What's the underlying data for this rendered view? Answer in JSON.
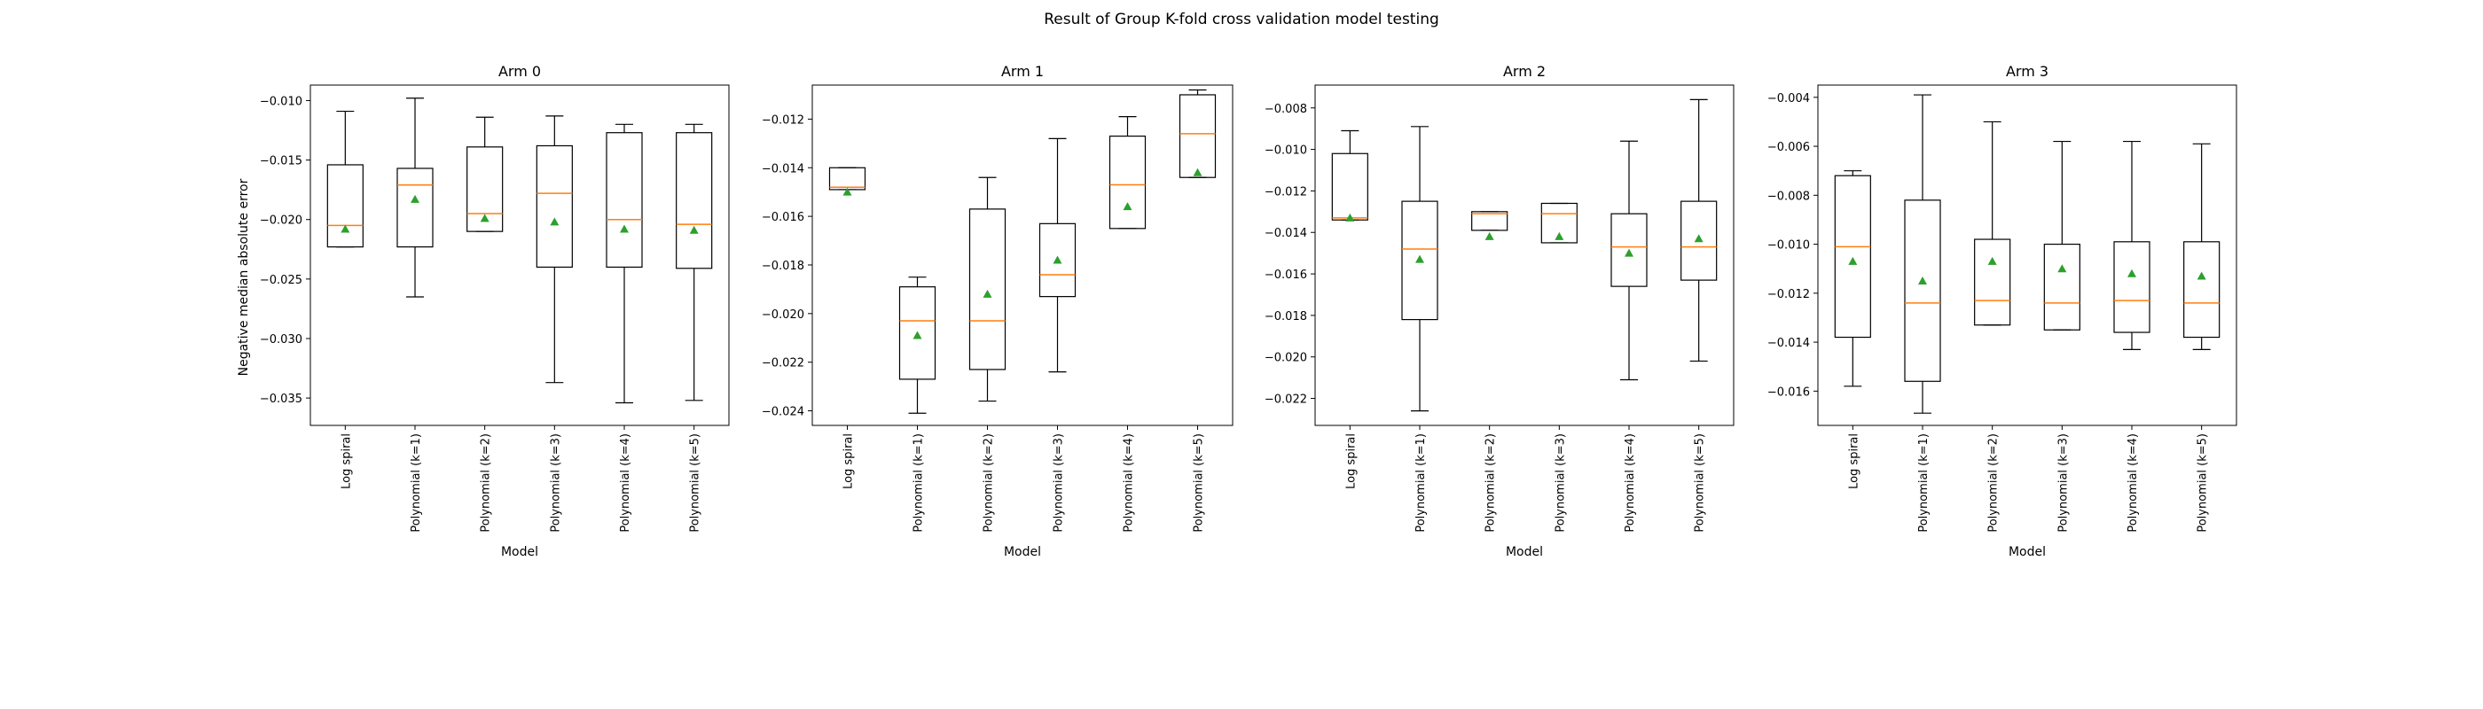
{
  "figure": {
    "suptitle": "Result of Group K-fold cross validation model testing",
    "ylabel": "Negative median absolute error",
    "colors": {
      "box": "#000000",
      "median": "#ff7f0e",
      "mean_marker": "#2ca02c"
    }
  },
  "chart_data": [
    {
      "type": "box",
      "title": "Arm 0",
      "xlabel": "Model",
      "ylabel": "Negative median absolute error",
      "categories": [
        "Log spiral",
        "Polynomial (k=1)",
        "Polynomial (k=2)",
        "Polynomial (k=3)",
        "Polynomial (k=4)",
        "Polynomial (k=5)"
      ],
      "ylim": [
        -0.0373,
        -0.0087
      ],
      "yticks": [
        -0.01,
        -0.015,
        -0.02,
        -0.025,
        -0.03,
        -0.035
      ],
      "yticklabels": [
        "−0.010",
        "−0.015",
        "−0.020",
        "−0.025",
        "−0.030",
        "−0.035"
      ],
      "boxes": [
        {
          "min": -0.0223,
          "q1": -0.0223,
          "median": -0.0205,
          "q3": -0.0154,
          "max": -0.0109,
          "mean": -0.0208
        },
        {
          "min": -0.0265,
          "q1": -0.0223,
          "median": -0.0171,
          "q3": -0.0157,
          "max": -0.0098,
          "mean": -0.0183
        },
        {
          "min": -0.021,
          "q1": -0.021,
          "median": -0.0195,
          "q3": -0.0139,
          "max": -0.0114,
          "mean": -0.0199
        },
        {
          "min": -0.0337,
          "q1": -0.024,
          "median": -0.0178,
          "q3": -0.0138,
          "max": -0.0113,
          "mean": -0.0202
        },
        {
          "min": -0.0354,
          "q1": -0.024,
          "median": -0.02,
          "q3": -0.0127,
          "max": -0.012,
          "mean": -0.0208
        },
        {
          "min": -0.0352,
          "q1": -0.0241,
          "median": -0.0204,
          "q3": -0.0127,
          "max": -0.012,
          "mean": -0.0209
        }
      ]
    },
    {
      "type": "box",
      "title": "Arm 1",
      "xlabel": "Model",
      "categories": [
        "Log spiral",
        "Polynomial (k=1)",
        "Polynomial (k=2)",
        "Polynomial (k=3)",
        "Polynomial (k=4)",
        "Polynomial (k=5)"
      ],
      "ylim": [
        -0.0246,
        -0.0106
      ],
      "yticks": [
        -0.012,
        -0.014,
        -0.016,
        -0.018,
        -0.02,
        -0.022,
        -0.024
      ],
      "yticklabels": [
        "−0.012",
        "−0.014",
        "−0.016",
        "−0.018",
        "−0.020",
        "−0.022",
        "−0.024"
      ],
      "boxes": [
        {
          "min": -0.0149,
          "q1": -0.0149,
          "median": -0.0148,
          "q3": -0.014,
          "max": -0.014,
          "mean": -0.015
        },
        {
          "min": -0.0241,
          "q1": -0.0227,
          "median": -0.0203,
          "q3": -0.0189,
          "max": -0.0185,
          "mean": -0.0209
        },
        {
          "min": -0.0236,
          "q1": -0.0223,
          "median": -0.0203,
          "q3": -0.0157,
          "max": -0.0144,
          "mean": -0.0192
        },
        {
          "min": -0.0224,
          "q1": -0.0193,
          "median": -0.0184,
          "q3": -0.0163,
          "max": -0.0128,
          "mean": -0.0178
        },
        {
          "min": -0.0165,
          "q1": -0.0165,
          "median": -0.0147,
          "q3": -0.0127,
          "max": -0.0119,
          "mean": -0.0156
        },
        {
          "min": -0.0144,
          "q1": -0.0144,
          "median": -0.0126,
          "q3": -0.011,
          "max": -0.0108,
          "mean": -0.0142
        }
      ]
    },
    {
      "type": "box",
      "title": "Arm 2",
      "xlabel": "Model",
      "categories": [
        "Log spiral",
        "Polynomial (k=1)",
        "Polynomial (k=2)",
        "Polynomial (k=3)",
        "Polynomial (k=4)",
        "Polynomial (k=5)"
      ],
      "ylim": [
        -0.0233,
        -0.0069
      ],
      "yticks": [
        -0.008,
        -0.01,
        -0.012,
        -0.014,
        -0.016,
        -0.018,
        -0.02,
        -0.022
      ],
      "yticklabels": [
        "−0.008",
        "−0.010",
        "−0.012",
        "−0.014",
        "−0.016",
        "−0.018",
        "−0.020",
        "−0.022"
      ],
      "boxes": [
        {
          "min": -0.0134,
          "q1": -0.0134,
          "median": -0.0133,
          "q3": -0.0102,
          "max": -0.0091,
          "mean": -0.0133
        },
        {
          "min": -0.0226,
          "q1": -0.0182,
          "median": -0.0148,
          "q3": -0.0125,
          "max": -0.0089,
          "mean": -0.0153
        },
        {
          "min": -0.0139,
          "q1": -0.0139,
          "median": -0.0131,
          "q3": -0.013,
          "max": -0.013,
          "mean": -0.0142
        },
        {
          "min": -0.0145,
          "q1": -0.0145,
          "median": -0.0131,
          "q3": -0.0126,
          "max": -0.0126,
          "mean": -0.0142
        },
        {
          "min": -0.0211,
          "q1": -0.0166,
          "median": -0.0147,
          "q3": -0.0131,
          "max": -0.0096,
          "mean": -0.015
        },
        {
          "min": -0.0202,
          "q1": -0.0163,
          "median": -0.0147,
          "q3": -0.0125,
          "max": -0.0076,
          "mean": -0.0143
        }
      ]
    },
    {
      "type": "box",
      "title": "Arm 3",
      "xlabel": "Model",
      "categories": [
        "Log spiral",
        "Polynomial (k=1)",
        "Polynomial (k=2)",
        "Polynomial (k=3)",
        "Polynomial (k=4)",
        "Polynomial (k=5)"
      ],
      "ylim": [
        -0.0174,
        -0.0035
      ],
      "yticks": [
        -0.004,
        -0.006,
        -0.008,
        -0.01,
        -0.012,
        -0.014,
        -0.016
      ],
      "yticklabels": [
        "−0.004",
        "−0.006",
        "−0.008",
        "−0.010",
        "−0.012",
        "−0.014",
        "−0.016"
      ],
      "boxes": [
        {
          "min": -0.0158,
          "q1": -0.0138,
          "median": -0.0101,
          "q3": -0.0072,
          "max": -0.007,
          "mean": -0.0107
        },
        {
          "min": -0.0169,
          "q1": -0.0156,
          "median": -0.0124,
          "q3": -0.0082,
          "max": -0.0039,
          "mean": -0.0115
        },
        {
          "min": -0.0133,
          "q1": -0.0133,
          "median": -0.0123,
          "q3": -0.0098,
          "max": -0.005,
          "mean": -0.0107
        },
        {
          "min": -0.0135,
          "q1": -0.0135,
          "median": -0.0124,
          "q3": -0.01,
          "max": -0.0058,
          "mean": -0.011
        },
        {
          "min": -0.0143,
          "q1": -0.0136,
          "median": -0.0123,
          "q3": -0.0099,
          "max": -0.0058,
          "mean": -0.0112
        },
        {
          "min": -0.0143,
          "q1": -0.0138,
          "median": -0.0124,
          "q3": -0.0099,
          "max": -0.0059,
          "mean": -0.0113
        }
      ]
    }
  ]
}
